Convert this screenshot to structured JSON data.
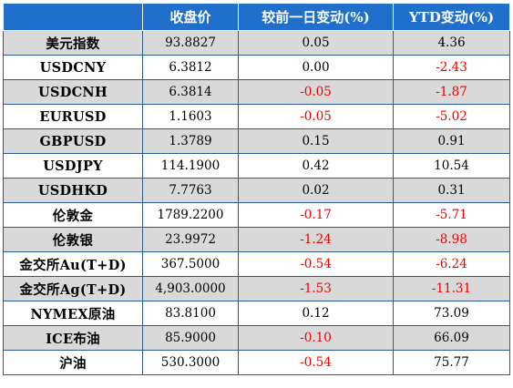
{
  "table": {
    "headers": [
      "",
      "收盘价",
      "较前一日变动(%)",
      "YTD变动(%)"
    ],
    "rows": [
      {
        "name": "美元指数",
        "close": "93.8827",
        "daily": "0.05",
        "ytd": "4.36"
      },
      {
        "name": "USDCNY",
        "close": "6.3812",
        "daily": "0.00",
        "ytd": "-2.43"
      },
      {
        "name": "USDCNH",
        "close": "6.3814",
        "daily": "-0.05",
        "ytd": "-1.87"
      },
      {
        "name": "EURUSD",
        "close": "1.1603",
        "daily": "-0.05",
        "ytd": "-5.02"
      },
      {
        "name": "GBPUSD",
        "close": "1.3789",
        "daily": "0.15",
        "ytd": "0.91"
      },
      {
        "name": "USDJPY",
        "close": "114.1900",
        "daily": "0.42",
        "ytd": "10.54"
      },
      {
        "name": "USDHKD",
        "close": "7.7763",
        "daily": "0.02",
        "ytd": "0.31"
      },
      {
        "name": "伦敦金",
        "close": "1789.2200",
        "daily": "-0.17",
        "ytd": "-5.71"
      },
      {
        "name": "伦敦银",
        "close": "23.9972",
        "daily": "-1.24",
        "ytd": "-8.98"
      },
      {
        "name": "金交所Au(T+D)",
        "close": "367.5000",
        "daily": "-0.54",
        "ytd": "-6.24"
      },
      {
        "name": "金交所Ag(T+D)",
        "close": "4,903.0000",
        "daily": "-1.53",
        "ytd": "-11.31"
      },
      {
        "name": "NYMEX原油",
        "close": "83.8100",
        "daily": "0.12",
        "ytd": "73.09"
      },
      {
        "name": "ICE布油",
        "close": "85.9000",
        "daily": "-0.10",
        "ytd": "66.09"
      },
      {
        "name": "沪油",
        "close": "530.3000",
        "daily": "-0.54",
        "ytd": "75.77"
      }
    ]
  },
  "colors": {
    "header_bg": "#1f6fcb",
    "header_text": "#ffffff",
    "row_shade": "#d9d9d9",
    "negative": "#ee0000",
    "positive": "#000000",
    "border": "#2c5a92"
  }
}
